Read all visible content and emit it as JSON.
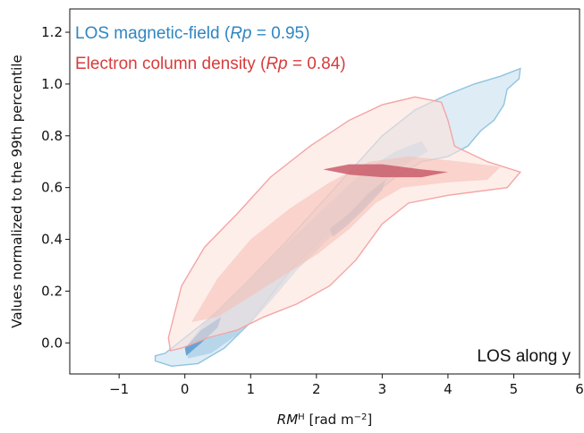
{
  "chart_data": {
    "type": "contour",
    "title": "",
    "xlabel_main": "RM",
    "xlabel_sup": "H",
    "xlabel_unit_pre": " [rad m",
    "xlabel_unit_sup": "−2",
    "xlabel_unit_post": "]",
    "ylabel": "Values normalized to the 99th percentile",
    "xlim": [
      -1.75,
      6.0
    ],
    "ylim": [
      -0.12,
      1.29
    ],
    "xticks": [
      -1,
      0,
      1,
      2,
      3,
      4,
      5,
      6
    ],
    "xtick_labels": [
      "−1",
      "0",
      "1",
      "2",
      "3",
      "4",
      "5",
      "6"
    ],
    "yticks": [
      0.0,
      0.2,
      0.4,
      0.6,
      0.8,
      1.0,
      1.2
    ],
    "ytick_labels": [
      "0.0",
      "0.2",
      "0.4",
      "0.6",
      "0.8",
      "1.0",
      "1.2"
    ],
    "annotation": "LOS along y",
    "legend_position": "top-left",
    "series": [
      {
        "legend_prefix": "LOS magnetic-field (",
        "legend_rp": "Rp",
        "legend_suffix": " = 0.95)",
        "color": "#2f86c2",
        "levels": [
          {
            "fill": "#d3e5f3",
            "opacity": 0.75,
            "outline": "#8fc3df",
            "points": [
              [
                -0.45,
                -0.05
              ],
              [
                -0.3,
                -0.04
              ],
              [
                0.0,
                0.02
              ],
              [
                0.5,
                0.12
              ],
              [
                1.0,
                0.25
              ],
              [
                1.5,
                0.38
              ],
              [
                2.0,
                0.52
              ],
              [
                2.5,
                0.66
              ],
              [
                3.0,
                0.8
              ],
              [
                3.5,
                0.9
              ],
              [
                4.0,
                0.96
              ],
              [
                4.4,
                1.0
              ],
              [
                4.8,
                1.03
              ],
              [
                5.1,
                1.06
              ],
              [
                5.08,
                1.02
              ],
              [
                4.9,
                0.98
              ],
              [
                4.85,
                0.92
              ],
              [
                4.7,
                0.86
              ],
              [
                4.5,
                0.82
              ],
              [
                4.3,
                0.76
              ],
              [
                4.0,
                0.72
              ],
              [
                3.6,
                0.7
              ],
              [
                3.2,
                0.64
              ],
              [
                2.8,
                0.56
              ],
              [
                2.5,
                0.5
              ],
              [
                2.2,
                0.44
              ],
              [
                1.9,
                0.36
              ],
              [
                1.6,
                0.28
              ],
              [
                1.3,
                0.18
              ],
              [
                1.0,
                0.08
              ],
              [
                0.6,
                -0.02
              ],
              [
                0.2,
                -0.08
              ],
              [
                -0.2,
                -0.09
              ],
              [
                -0.45,
                -0.07
              ]
            ]
          },
          {
            "fill": "#a7cde6",
            "opacity": 0.7,
            "outline": null,
            "points": [
              [
                0.0,
                -0.02
              ],
              [
                0.3,
                0.08
              ],
              [
                0.7,
                0.18
              ],
              [
                1.2,
                0.3
              ],
              [
                1.7,
                0.42
              ],
              [
                2.2,
                0.54
              ],
              [
                2.7,
                0.66
              ],
              [
                3.2,
                0.74
              ],
              [
                3.6,
                0.78
              ],
              [
                3.7,
                0.74
              ],
              [
                3.3,
                0.68
              ],
              [
                2.9,
                0.58
              ],
              [
                2.5,
                0.48
              ],
              [
                2.1,
                0.38
              ],
              [
                1.7,
                0.28
              ],
              [
                1.3,
                0.16
              ],
              [
                0.9,
                0.05
              ],
              [
                0.4,
                -0.04
              ],
              [
                0.05,
                -0.06
              ]
            ]
          },
          {
            "fill": "#5b9bcf",
            "opacity": 0.85,
            "outline": null,
            "points": [
              [
                2.2,
                0.44
              ],
              [
                2.5,
                0.5
              ],
              [
                2.8,
                0.58
              ],
              [
                3.05,
                0.63
              ],
              [
                3.0,
                0.59
              ],
              [
                2.7,
                0.51
              ],
              [
                2.45,
                0.45
              ],
              [
                2.25,
                0.41
              ]
            ]
          },
          {
            "fill": "#5b9bcf",
            "opacity": 0.85,
            "outline": null,
            "points": [
              [
                0.0,
                -0.02
              ],
              [
                0.25,
                0.05
              ],
              [
                0.55,
                0.1
              ],
              [
                0.5,
                0.06
              ],
              [
                0.25,
                0.0
              ],
              [
                0.02,
                -0.05
              ]
            ]
          }
        ]
      },
      {
        "legend_prefix": "Electron column density (",
        "legend_rp": "Rp",
        "legend_suffix": " = 0.84)",
        "color": "#d73c3c",
        "levels": [
          {
            "fill": "#fbe2dc",
            "opacity": 0.6,
            "outline": "#f4a5a5",
            "points": [
              [
                -0.25,
                0.02
              ],
              [
                -0.05,
                0.22
              ],
              [
                0.3,
                0.37
              ],
              [
                0.8,
                0.5
              ],
              [
                1.3,
                0.64
              ],
              [
                1.9,
                0.76
              ],
              [
                2.5,
                0.86
              ],
              [
                3.0,
                0.92
              ],
              [
                3.5,
                0.95
              ],
              [
                3.9,
                0.93
              ],
              [
                4.0,
                0.86
              ],
              [
                4.1,
                0.76
              ],
              [
                4.6,
                0.7
              ],
              [
                5.1,
                0.66
              ],
              [
                4.9,
                0.6
              ],
              [
                4.0,
                0.57
              ],
              [
                3.4,
                0.54
              ],
              [
                3.0,
                0.46
              ],
              [
                2.6,
                0.32
              ],
              [
                2.2,
                0.22
              ],
              [
                1.7,
                0.15
              ],
              [
                1.2,
                0.1
              ],
              [
                0.8,
                0.05
              ],
              [
                0.35,
                0.02
              ],
              [
                -0.05,
                -0.02
              ],
              [
                -0.22,
                -0.03
              ]
            ]
          },
          {
            "fill": "#f6bdb2",
            "opacity": 0.55,
            "outline": null,
            "points": [
              [
                0.1,
                0.08
              ],
              [
                0.5,
                0.25
              ],
              [
                1.0,
                0.4
              ],
              [
                1.6,
                0.52
              ],
              [
                2.2,
                0.62
              ],
              [
                2.8,
                0.7
              ],
              [
                3.4,
                0.72
              ],
              [
                4.2,
                0.7
              ],
              [
                4.8,
                0.68
              ],
              [
                4.6,
                0.63
              ],
              [
                4.0,
                0.62
              ],
              [
                3.3,
                0.6
              ],
              [
                2.9,
                0.54
              ],
              [
                2.5,
                0.44
              ],
              [
                2.0,
                0.34
              ],
              [
                1.5,
                0.26
              ],
              [
                1.0,
                0.18
              ],
              [
                0.5,
                0.1
              ]
            ]
          },
          {
            "fill": "#c95d6b",
            "opacity": 0.85,
            "outline": null,
            "points": [
              [
                2.1,
                0.67
              ],
              [
                2.5,
                0.69
              ],
              [
                3.0,
                0.69
              ],
              [
                3.6,
                0.67
              ],
              [
                4.0,
                0.66
              ],
              [
                3.6,
                0.64
              ],
              [
                3.0,
                0.64
              ],
              [
                2.5,
                0.65
              ]
            ]
          }
        ]
      }
    ]
  }
}
